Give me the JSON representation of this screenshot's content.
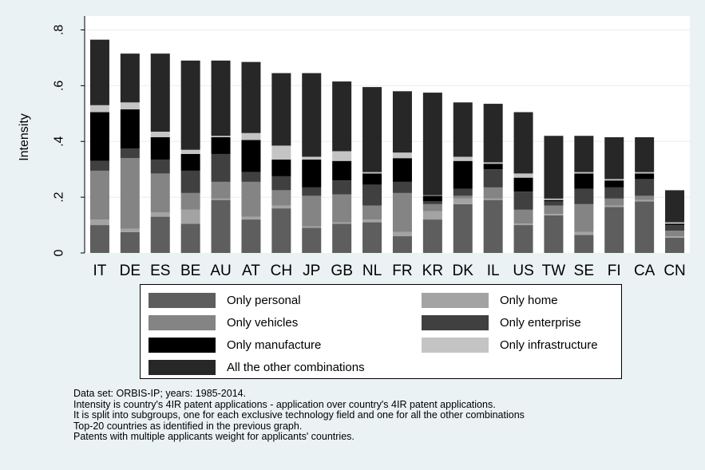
{
  "chart_data": {
    "type": "bar",
    "stacked": true,
    "ylabel": "Intensity",
    "ylim": [
      0,
      0.85
    ],
    "y_ticks": [
      {
        "value": 0,
        "label": "0"
      },
      {
        "value": 0.2,
        "label": ".2"
      },
      {
        "value": 0.4,
        "label": ".4"
      },
      {
        "value": 0.6,
        "label": ".6"
      },
      {
        "value": 0.8,
        "label": ".8"
      }
    ],
    "grid": true,
    "legend_position": "bottom",
    "categories": [
      "IT",
      "DE",
      "ES",
      "BE",
      "AU",
      "AT",
      "CH",
      "JP",
      "GB",
      "NL",
      "FR",
      "KR",
      "DK",
      "IL",
      "US",
      "TW",
      "SE",
      "FI",
      "CA",
      "CN"
    ],
    "series": [
      {
        "name": "Only personal",
        "color": "#5e5e5e",
        "values": [
          0.1,
          0.075,
          0.13,
          0.105,
          0.19,
          0.12,
          0.16,
          0.09,
          0.105,
          0.11,
          0.06,
          0.12,
          0.175,
          0.19,
          0.1,
          0.135,
          0.065,
          0.165,
          0.185,
          0.055
        ]
      },
      {
        "name": "Only home",
        "color": "#a3a3a3",
        "values": [
          0.02,
          0.012,
          0.015,
          0.05,
          0.005,
          0.01,
          0.01,
          0.005,
          0.005,
          0.01,
          0.015,
          0.03,
          0.02,
          0.005,
          0.005,
          0.005,
          0.01,
          0.005,
          0.005,
          0.005
        ]
      },
      {
        "name": "Only vehicles",
        "color": "#848484",
        "values": [
          0.175,
          0.253,
          0.14,
          0.06,
          0.06,
          0.125,
          0.055,
          0.11,
          0.1,
          0.05,
          0.14,
          0.025,
          0.01,
          0.04,
          0.05,
          0.03,
          0.1,
          0.025,
          0.015,
          0.02
        ]
      },
      {
        "name": "Only enterprise",
        "color": "#404040",
        "values": [
          0.035,
          0.035,
          0.05,
          0.08,
          0.1,
          0.035,
          0.05,
          0.03,
          0.05,
          0.075,
          0.04,
          0.01,
          0.025,
          0.065,
          0.065,
          0.015,
          0.055,
          0.04,
          0.06,
          0.02
        ]
      },
      {
        "name": "Only manufacture",
        "color": "#000000",
        "values": [
          0.175,
          0.14,
          0.08,
          0.06,
          0.06,
          0.115,
          0.06,
          0.1,
          0.07,
          0.04,
          0.085,
          0.02,
          0.1,
          0.02,
          0.05,
          0.005,
          0.055,
          0.025,
          0.02,
          0.005
        ]
      },
      {
        "name": "Only infrastructure",
        "color": "#c4c4c4",
        "values": [
          0.025,
          0.025,
          0.02,
          0.015,
          0.005,
          0.025,
          0.05,
          0.01,
          0.035,
          0.005,
          0.02,
          0.002,
          0.015,
          0.005,
          0.015,
          0.005,
          0.005,
          0.005,
          0.005,
          0.005
        ]
      },
      {
        "name": "All the other combinations",
        "color": "#272727",
        "values": [
          0.235,
          0.175,
          0.28,
          0.32,
          0.27,
          0.255,
          0.26,
          0.3,
          0.25,
          0.305,
          0.22,
          0.368,
          0.195,
          0.21,
          0.22,
          0.225,
          0.13,
          0.15,
          0.125,
          0.115
        ]
      }
    ]
  },
  "notes": [
    "Data set: ORBIS-IP; years: 1985-2014.",
    "Intensity is country's 4IR patent applications - application over country's 4IR patent applications.",
    "It is split into subgroups, one for each exclusive technology field and one for all the other combinations",
    "Top-20 countries as identified in the previous graph.",
    "Patents with multiple applicants weight for applicants' countries."
  ]
}
